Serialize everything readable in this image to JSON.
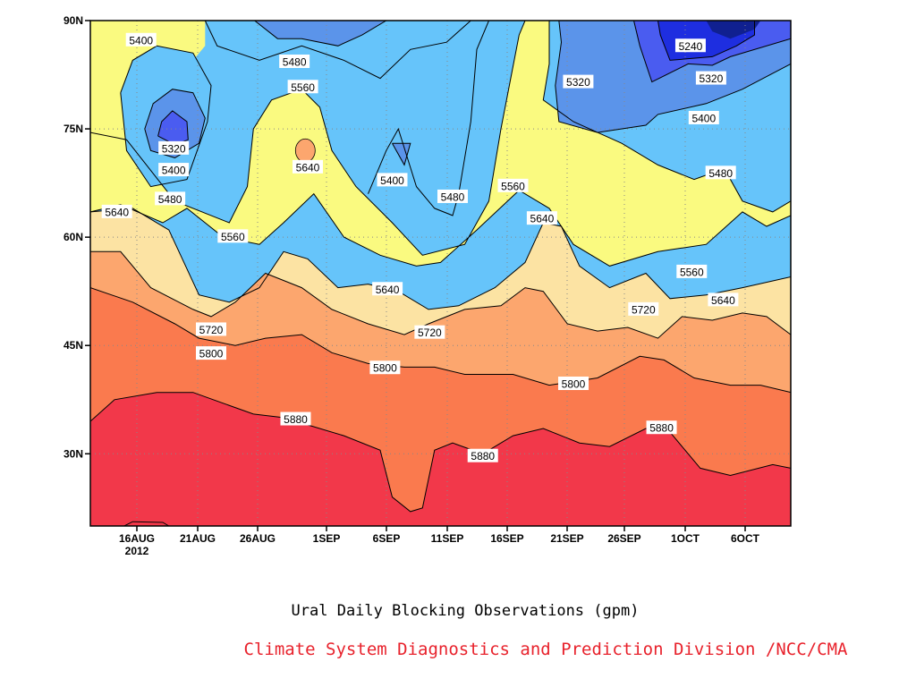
{
  "caption": "Ural Daily Blocking Observations (gpm)",
  "credit": "Climate System Diagnostics and Prediction Division /NCC/CMA",
  "credit_color": "#e8222c",
  "chart_data": {
    "type": "filled-contour",
    "title": "Ural Daily Blocking Observations (gpm)",
    "x_ticks": [
      "16AUG",
      "21AUG",
      "26AUG",
      "1SEP",
      "6SEP",
      "11SEP",
      "16SEP",
      "21SEP",
      "26SEP",
      "1OCT",
      "6OCT"
    ],
    "x_year_label": "2012",
    "y_ticks": [
      "30N",
      "45N",
      "60N",
      "75N",
      "90N"
    ],
    "y_tick_values": [
      30,
      45,
      60,
      75,
      90
    ],
    "ylim": [
      20,
      90
    ],
    "contour_levels": [
      5240,
      5320,
      5400,
      5480,
      5560,
      5640,
      5720,
      5800,
      5880
    ],
    "fill_colors": [
      "#102090",
      "#1e2ee0",
      "#4a5cf0",
      "#5b94ea",
      "#66c4fa",
      "#fafa80",
      "#fce3a3",
      "#fca66e",
      "#fa7a4e",
      "#f66e7e",
      "#f2384a"
    ],
    "grid": true,
    "contour_labels": [
      {
        "text": "5400",
        "day": 4.2,
        "lat": 87.3
      },
      {
        "text": "5480",
        "day": 16.9,
        "lat": 84.3
      },
      {
        "text": "5560",
        "day": 17.6,
        "lat": 80.8
      },
      {
        "text": "5320",
        "day": 6.9,
        "lat": 72.3
      },
      {
        "text": "5400",
        "day": 6.9,
        "lat": 69.3
      },
      {
        "text": "5480",
        "day": 6.6,
        "lat": 65.3
      },
      {
        "text": "5640",
        "day": 18.0,
        "lat": 69.7
      },
      {
        "text": "5400",
        "day": 25.0,
        "lat": 67.9
      },
      {
        "text": "5480",
        "day": 30.0,
        "lat": 65.6
      },
      {
        "text": "5640",
        "day": 2.2,
        "lat": 63.5
      },
      {
        "text": "5560",
        "day": 11.8,
        "lat": 60.1
      },
      {
        "text": "5560",
        "day": 35.0,
        "lat": 67.1
      },
      {
        "text": "5640",
        "day": 37.4,
        "lat": 62.6
      },
      {
        "text": "5320",
        "day": 40.4,
        "lat": 81.5
      },
      {
        "text": "5240",
        "day": 49.7,
        "lat": 86.5
      },
      {
        "text": "5320",
        "day": 51.4,
        "lat": 82.0
      },
      {
        "text": "5400",
        "day": 50.8,
        "lat": 76.5
      },
      {
        "text": "5480",
        "day": 52.2,
        "lat": 68.9
      },
      {
        "text": "5640",
        "day": 24.6,
        "lat": 52.8
      },
      {
        "text": "5720",
        "day": 10.0,
        "lat": 47.2
      },
      {
        "text": "5800",
        "day": 10.0,
        "lat": 43.9
      },
      {
        "text": "5720",
        "day": 28.1,
        "lat": 46.8
      },
      {
        "text": "5800",
        "day": 24.4,
        "lat": 41.9
      },
      {
        "text": "5560",
        "day": 49.8,
        "lat": 55.2
      },
      {
        "text": "5640",
        "day": 52.4,
        "lat": 51.3
      },
      {
        "text": "5720",
        "day": 45.8,
        "lat": 50.0
      },
      {
        "text": "5800",
        "day": 40.0,
        "lat": 39.7
      },
      {
        "text": "5880",
        "day": 17.0,
        "lat": 34.8
      },
      {
        "text": "5880",
        "day": 32.5,
        "lat": 29.7
      },
      {
        "text": "5880",
        "day": 47.3,
        "lat": 33.6
      }
    ],
    "contours": [
      {
        "level": 5240,
        "points": [
          [
            47.0,
            90
          ],
          [
            47.2,
            88.0
          ],
          [
            48.0,
            84.5
          ],
          [
            51.5,
            85.0
          ],
          [
            53.5,
            86.5
          ],
          [
            55.0,
            88.0
          ],
          [
            55.0,
            90
          ]
        ]
      },
      {
        "level": 5320,
        "points": [
          [
            45.0,
            90
          ],
          [
            45.5,
            86.5
          ],
          [
            46.5,
            81.5
          ],
          [
            49.5,
            84.0
          ],
          [
            51.5,
            83.8
          ],
          [
            53.0,
            85.0
          ],
          [
            58.0,
            87.5
          ],
          [
            58.0,
            90
          ]
        ]
      },
      {
        "level": 5320,
        "points": [
          [
            5.6,
            74.0
          ],
          [
            5.9,
            76.0
          ],
          [
            6.8,
            77.5
          ],
          [
            8.0,
            76.0
          ],
          [
            8.1,
            73.5
          ],
          [
            7.0,
            72.8
          ],
          [
            5.6,
            74.0
          ]
        ]
      },
      {
        "level": 5400,
        "points": [
          [
            38.8,
            90
          ],
          [
            39.0,
            87.0
          ],
          [
            38.5,
            81.0
          ],
          [
            38.8,
            76.0
          ],
          [
            42.0,
            74.5
          ],
          [
            46.0,
            75.5
          ],
          [
            47.0,
            77.0
          ],
          [
            51.0,
            78.5
          ],
          [
            54.0,
            80.5
          ],
          [
            58.0,
            84.0
          ],
          [
            58.0,
            90
          ]
        ]
      },
      {
        "level": 5400,
        "points": [
          [
            13.6,
            90
          ],
          [
            15.5,
            87.5
          ],
          [
            17.5,
            87.5
          ],
          [
            20.5,
            86.5
          ],
          [
            22.5,
            88.0
          ],
          [
            24.5,
            90
          ]
        ]
      },
      {
        "level": 5400,
        "points": [
          [
            4.5,
            75.0
          ],
          [
            5.2,
            78.5
          ],
          [
            6.8,
            80.5
          ],
          [
            8.5,
            80.0
          ],
          [
            9.5,
            76.5
          ],
          [
            9.0,
            73.0
          ],
          [
            7.0,
            71.0
          ],
          [
            5.0,
            72.0
          ],
          [
            4.5,
            75.0
          ]
        ]
      },
      {
        "level": 5400,
        "points": [
          [
            25.0,
            73.0
          ],
          [
            26.0,
            70.0
          ],
          [
            26.5,
            73.0
          ],
          [
            25.0,
            73.0
          ]
        ]
      },
      {
        "level": 5480,
        "points": [
          [
            38.0,
            90
          ],
          [
            38.0,
            84.0
          ],
          [
            37.5,
            79.0
          ],
          [
            40.0,
            76.0
          ],
          [
            44.0,
            73.0
          ],
          [
            47.0,
            70.0
          ],
          [
            50.0,
            68.0
          ],
          [
            52.5,
            69.5
          ],
          [
            54.0,
            65.0
          ],
          [
            56.5,
            63.5
          ],
          [
            58.0,
            65.0
          ],
          [
            58.0,
            90
          ]
        ]
      },
      {
        "level": 5480,
        "points": [
          [
            9.5,
            90
          ],
          [
            10.5,
            86.5
          ],
          [
            14.0,
            84.5
          ],
          [
            17.5,
            86.5
          ],
          [
            21.0,
            84.5
          ],
          [
            24.0,
            82.0
          ],
          [
            26.5,
            86.0
          ],
          [
            29.5,
            87.0
          ],
          [
            31.5,
            90
          ]
        ]
      },
      {
        "level": 5480,
        "points": [
          [
            2.5,
            80.0
          ],
          [
            3.5,
            84.5
          ],
          [
            5.5,
            86.5
          ],
          [
            8.5,
            85.5
          ],
          [
            10.0,
            81.0
          ],
          [
            9.7,
            76.0
          ],
          [
            8.0,
            68.0
          ],
          [
            5.0,
            67.0
          ],
          [
            3.0,
            72.0
          ],
          [
            2.5,
            80.0
          ]
        ]
      },
      {
        "level": 5480,
        "points": [
          [
            23.0,
            66.0
          ],
          [
            24.5,
            72.0
          ],
          [
            25.5,
            75.0
          ],
          [
            27.0,
            67.0
          ],
          [
            28.5,
            64.0
          ],
          [
            30.0,
            63.0
          ],
          [
            30.5,
            66.0
          ],
          [
            31.5,
            76.0
          ],
          [
            32.0,
            86.0
          ],
          [
            33.0,
            90
          ]
        ]
      },
      {
        "level": 5560,
        "points": [
          [
            0,
            74.5
          ],
          [
            3.0,
            73.5
          ],
          [
            7.0,
            65.0
          ],
          [
            11.5,
            62.0
          ],
          [
            13.0,
            67.0
          ],
          [
            13.5,
            75.0
          ],
          [
            15.0,
            79.0
          ],
          [
            17.5,
            80.5
          ],
          [
            19.0,
            78.0
          ],
          [
            20.0,
            72.0
          ],
          [
            22.0,
            67.0
          ],
          [
            25.0,
            62.0
          ],
          [
            27.5,
            57.5
          ],
          [
            31.0,
            59.0
          ],
          [
            33.0,
            65.0
          ],
          [
            34.0,
            75.0
          ],
          [
            35.5,
            88.0
          ],
          [
            36.0,
            90
          ],
          [
            58.0,
            90
          ],
          [
            58.0,
            63.0
          ],
          [
            56.0,
            61.5
          ],
          [
            54.0,
            63.5
          ],
          [
            51.0,
            59.0
          ],
          [
            47.0,
            58.0
          ],
          [
            43.0,
            56.0
          ],
          [
            40.0,
            59.0
          ],
          [
            38.0,
            64.0
          ],
          [
            35.5,
            66.5
          ],
          [
            32.0,
            61.0
          ],
          [
            29.0,
            56.5
          ],
          [
            27.0,
            56.0
          ],
          [
            24.0,
            57.5
          ],
          [
            21.0,
            60.0
          ],
          [
            18.5,
            66.0
          ],
          [
            16.0,
            62.0
          ],
          [
            14.0,
            59.0
          ],
          [
            11.0,
            60.0
          ],
          [
            8.0,
            64.0
          ],
          [
            6.0,
            62.0
          ],
          [
            2.5,
            64.5
          ],
          [
            0,
            63.5
          ]
        ]
      },
      {
        "level": 5640,
        "points": [
          [
            0,
            63.5
          ],
          [
            3.5,
            64.0
          ],
          [
            6.5,
            61.0
          ],
          [
            9.0,
            52.0
          ],
          [
            11.5,
            51.0
          ],
          [
            14.0,
            53.0
          ],
          [
            16.0,
            58.0
          ],
          [
            18.0,
            57.0
          ],
          [
            20.5,
            53.0
          ],
          [
            23.0,
            53.5
          ],
          [
            25.5,
            52.5
          ],
          [
            28.0,
            50.0
          ],
          [
            30.5,
            50.5
          ],
          [
            33.5,
            53.0
          ],
          [
            36.0,
            56.5
          ],
          [
            37.5,
            62.0
          ],
          [
            39.0,
            61.5
          ],
          [
            40.5,
            56.0
          ],
          [
            43.0,
            53.0
          ],
          [
            46.0,
            55.0
          ],
          [
            48.0,
            51.5
          ],
          [
            51.0,
            52.0
          ],
          [
            54.0,
            53.0
          ],
          [
            58.0,
            54.5
          ]
        ]
      },
      {
        "level": 5720,
        "points": [
          [
            0,
            58.0
          ],
          [
            2.5,
            58.0
          ],
          [
            5.0,
            53.0
          ],
          [
            8.5,
            50.0
          ],
          [
            10.0,
            49.0
          ],
          [
            12.0,
            51.0
          ],
          [
            14.5,
            55.0
          ],
          [
            17.5,
            53.0
          ],
          [
            20.0,
            50.0
          ],
          [
            23.0,
            48.0
          ],
          [
            26.0,
            46.5
          ],
          [
            28.0,
            48.0
          ],
          [
            31.0,
            50.0
          ],
          [
            34.0,
            50.5
          ],
          [
            36.0,
            53.0
          ],
          [
            37.5,
            52.5
          ],
          [
            39.5,
            48.0
          ],
          [
            42.0,
            47.0
          ],
          [
            44.5,
            47.5
          ],
          [
            47.0,
            46.0
          ],
          [
            49.0,
            49.0
          ],
          [
            51.5,
            48.5
          ],
          [
            54.0,
            49.5
          ],
          [
            56.0,
            49.0
          ],
          [
            58.0,
            46.5
          ]
        ]
      },
      {
        "level": 5800,
        "points": [
          [
            0,
            53.0
          ],
          [
            3.5,
            51.0
          ],
          [
            7.0,
            48.0
          ],
          [
            9.0,
            46.0
          ],
          [
            12.0,
            45.0
          ],
          [
            14.5,
            46.0
          ],
          [
            17.5,
            46.5
          ],
          [
            20.0,
            44.0
          ],
          [
            23.0,
            42.5
          ],
          [
            26.0,
            42.0
          ],
          [
            28.5,
            42.0
          ],
          [
            31.0,
            41.0
          ],
          [
            35.0,
            41.0
          ],
          [
            38.0,
            39.5
          ],
          [
            42.0,
            40.5
          ],
          [
            45.5,
            43.5
          ],
          [
            47.5,
            43.0
          ],
          [
            50.0,
            40.5
          ],
          [
            53.0,
            39.5
          ],
          [
            55.5,
            39.5
          ],
          [
            58.0,
            38.5
          ]
        ]
      },
      {
        "level": 5880,
        "points": [
          [
            0,
            34.5
          ],
          [
            2.0,
            37.5
          ],
          [
            5.5,
            38.5
          ],
          [
            8.5,
            38.5
          ],
          [
            11.0,
            37.0
          ],
          [
            13.5,
            35.5
          ],
          [
            16.0,
            35.0
          ],
          [
            18.0,
            34.0
          ],
          [
            21.0,
            32.5
          ],
          [
            24.0,
            30.5
          ],
          [
            25.0,
            24.0
          ],
          [
            26.5,
            22.0
          ],
          [
            27.5,
            22.5
          ],
          [
            28.5,
            30.5
          ],
          [
            30.0,
            31.5
          ],
          [
            32.5,
            30.0
          ],
          [
            35.0,
            32.5
          ],
          [
            37.5,
            33.5
          ],
          [
            40.5,
            31.5
          ],
          [
            43.0,
            31.0
          ],
          [
            46.0,
            33.5
          ],
          [
            48.0,
            33.0
          ],
          [
            50.5,
            28.0
          ],
          [
            53.0,
            27.0
          ],
          [
            56.5,
            28.5
          ],
          [
            58.0,
            28.0
          ]
        ]
      },
      {
        "level": 5880,
        "points": [
          [
            2.8,
            20.0
          ],
          [
            3.5,
            20.6
          ],
          [
            6.0,
            20.5
          ],
          [
            6.5,
            20.0
          ]
        ]
      }
    ]
  }
}
